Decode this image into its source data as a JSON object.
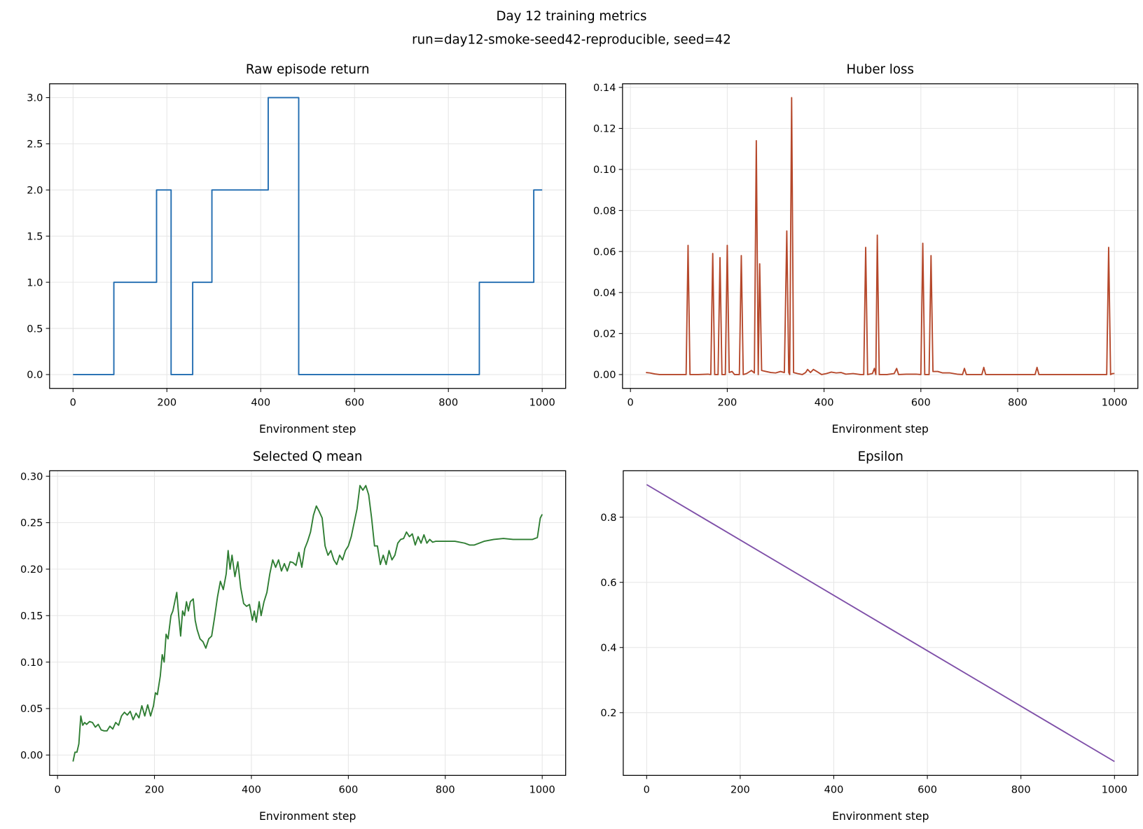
{
  "title": "Day 12 training metrics",
  "subtitle": "run=day12-smoke-seed42-reproducible, seed=42",
  "chart_data": [
    {
      "type": "line",
      "drawstyle": "steps-post",
      "title": "Raw episode return",
      "x_label": "Environment step",
      "color": "#1f6bb0",
      "grid": true,
      "x": [
        0,
        87,
        178,
        209,
        255,
        296,
        416,
        481,
        866,
        982,
        1000
      ],
      "values": [
        0,
        1,
        2,
        0,
        1,
        2,
        3,
        0,
        1,
        2,
        2
      ],
      "xlim": [
        -50,
        1050
      ],
      "ylim": [
        -0.15,
        3.15
      ],
      "xticks": [
        0,
        200,
        400,
        600,
        800,
        1000
      ],
      "yticks": [
        {
          "value": 0,
          "label": "0.0"
        },
        {
          "value": 0.5,
          "label": "0.5"
        },
        {
          "value": 1,
          "label": "1.0"
        },
        {
          "value": 1.5,
          "label": "1.5"
        },
        {
          "value": 2,
          "label": "2.0"
        },
        {
          "value": 2.5,
          "label": "2.5"
        },
        {
          "value": 3,
          "label": "3.0"
        }
      ]
    },
    {
      "type": "line",
      "title": "Huber loss",
      "x_label": "Environment step",
      "color": "#b5472a",
      "grid": true,
      "x": [
        32,
        40,
        50,
        60,
        80,
        100,
        115,
        119,
        123,
        140,
        160,
        166,
        170,
        174,
        181,
        185,
        189,
        196,
        200,
        204,
        210,
        215,
        225,
        229,
        233,
        240,
        250,
        256,
        260,
        264,
        267,
        271,
        280,
        290,
        300,
        310,
        318,
        323,
        327,
        329,
        333,
        337,
        345,
        355,
        362,
        366,
        372,
        378,
        385,
        395,
        405,
        415,
        425,
        435,
        445,
        460,
        475,
        482,
        486,
        490,
        500,
        504,
        507,
        510,
        514,
        530,
        545,
        550,
        554,
        570,
        590,
        600,
        604,
        608,
        617,
        621,
        625,
        635,
        645,
        660,
        675,
        686,
        690,
        694,
        710,
        726,
        730,
        734,
        760,
        800,
        836,
        840,
        844,
        900,
        960,
        984,
        988,
        992,
        996,
        1000
      ],
      "values": [
        0.001,
        0.0008,
        0.0003,
        0,
        0,
        0,
        0,
        0.063,
        0,
        0,
        0.0002,
        0,
        0.059,
        0,
        0,
        0.057,
        0,
        0,
        0.063,
        0.001,
        0.0015,
        0,
        0,
        0.058,
        0,
        0.0005,
        0.002,
        0.0008,
        0.114,
        0,
        0.054,
        0.002,
        0.0015,
        0.001,
        0.0008,
        0.0015,
        0.001,
        0.07,
        0.001,
        0,
        0.135,
        0.001,
        0.0005,
        0,
        0.001,
        0.0025,
        0.001,
        0.0025,
        0.0015,
        0,
        0.0005,
        0.0012,
        0.0008,
        0.001,
        0.0002,
        0.0005,
        0,
        0,
        0.062,
        0,
        0.0005,
        0.003,
        0,
        0.068,
        0,
        0,
        0.0005,
        0.003,
        0,
        0.0002,
        0.0002,
        0,
        0.064,
        0,
        0,
        0.058,
        0.0015,
        0.0015,
        0.0008,
        0.0008,
        0.0002,
        0,
        0.003,
        0,
        0,
        0,
        0.0035,
        0,
        0,
        0,
        0,
        0.0035,
        0,
        0,
        0,
        0,
        0.062,
        0,
        0.0005,
        0.0005
      ],
      "xlim": [
        -16.4,
        1048.4
      ],
      "ylim": [
        -0.00675,
        0.14175
      ],
      "xticks": [
        0,
        200,
        400,
        600,
        800,
        1000
      ],
      "yticks": [
        {
          "value": 0,
          "label": "0.00"
        },
        {
          "value": 0.02,
          "label": "0.02"
        },
        {
          "value": 0.04,
          "label": "0.04"
        },
        {
          "value": 0.06,
          "label": "0.06"
        },
        {
          "value": 0.08,
          "label": "0.08"
        },
        {
          "value": 0.1,
          "label": "0.10"
        },
        {
          "value": 0.12,
          "label": "0.12"
        },
        {
          "value": 0.14,
          "label": "0.14"
        }
      ]
    },
    {
      "type": "line",
      "title": "Selected Q mean",
      "x_label": "Environment step",
      "color": "#2e7d32",
      "grid": true,
      "x": [
        32,
        36,
        40,
        44,
        48,
        52,
        56,
        60,
        66,
        72,
        78,
        84,
        90,
        96,
        102,
        108,
        114,
        120,
        126,
        132,
        138,
        144,
        150,
        156,
        162,
        168,
        174,
        180,
        186,
        192,
        198,
        202,
        206,
        212,
        216,
        220,
        224,
        228,
        234,
        238,
        242,
        246,
        250,
        254,
        258,
        262,
        266,
        270,
        274,
        280,
        284,
        288,
        294,
        300,
        306,
        312,
        318,
        324,
        330,
        336,
        342,
        348,
        352,
        356,
        360,
        366,
        372,
        378,
        384,
        390,
        396,
        402,
        406,
        410,
        416,
        420,
        426,
        432,
        438,
        444,
        450,
        456,
        462,
        468,
        474,
        480,
        486,
        492,
        498,
        504,
        510,
        516,
        522,
        528,
        534,
        540,
        546,
        552,
        558,
        564,
        570,
        576,
        582,
        588,
        594,
        600,
        606,
        612,
        618,
        624,
        630,
        636,
        642,
        648,
        654,
        660,
        666,
        672,
        678,
        684,
        690,
        696,
        702,
        708,
        714,
        720,
        726,
        732,
        738,
        744,
        750,
        756,
        762,
        768,
        774,
        780,
        800,
        820,
        840,
        850,
        860,
        880,
        900,
        920,
        940,
        960,
        980,
        990,
        996,
        1000
      ],
      "values": [
        -0.007,
        0.003,
        0.003,
        0.012,
        0.042,
        0.032,
        0.035,
        0.033,
        0.036,
        0.035,
        0.03,
        0.033,
        0.027,
        0.026,
        0.026,
        0.031,
        0.028,
        0.035,
        0.032,
        0.042,
        0.046,
        0.043,
        0.047,
        0.038,
        0.045,
        0.04,
        0.053,
        0.042,
        0.054,
        0.042,
        0.053,
        0.067,
        0.065,
        0.085,
        0.108,
        0.1,
        0.13,
        0.125,
        0.15,
        0.155,
        0.165,
        0.175,
        0.15,
        0.128,
        0.155,
        0.15,
        0.165,
        0.155,
        0.165,
        0.168,
        0.145,
        0.135,
        0.125,
        0.122,
        0.115,
        0.125,
        0.128,
        0.148,
        0.17,
        0.187,
        0.178,
        0.195,
        0.22,
        0.2,
        0.215,
        0.192,
        0.208,
        0.18,
        0.163,
        0.16,
        0.162,
        0.145,
        0.155,
        0.143,
        0.165,
        0.15,
        0.165,
        0.175,
        0.195,
        0.21,
        0.202,
        0.21,
        0.198,
        0.206,
        0.198,
        0.208,
        0.207,
        0.204,
        0.218,
        0.202,
        0.222,
        0.23,
        0.24,
        0.258,
        0.268,
        0.262,
        0.255,
        0.225,
        0.215,
        0.22,
        0.21,
        0.205,
        0.215,
        0.21,
        0.22,
        0.225,
        0.235,
        0.25,
        0.265,
        0.29,
        0.285,
        0.29,
        0.28,
        0.255,
        0.225,
        0.225,
        0.205,
        0.215,
        0.205,
        0.22,
        0.21,
        0.215,
        0.228,
        0.232,
        0.233,
        0.24,
        0.235,
        0.238,
        0.226,
        0.235,
        0.228,
        0.237,
        0.228,
        0.232,
        0.229,
        0.23,
        0.23,
        0.23,
        0.228,
        0.226,
        0.226,
        0.23,
        0.232,
        0.233,
        0.232,
        0.232,
        0.232,
        0.234,
        0.255,
        0.259
      ],
      "xlim": [
        -16.4,
        1048.4
      ],
      "ylim": [
        -0.0219,
        0.3059
      ],
      "xticks": [
        0,
        200,
        400,
        600,
        800,
        1000
      ],
      "yticks": [
        {
          "value": 0,
          "label": "0.00"
        },
        {
          "value": 0.05,
          "label": "0.05"
        },
        {
          "value": 0.1,
          "label": "0.10"
        },
        {
          "value": 0.15,
          "label": "0.15"
        },
        {
          "value": 0.2,
          "label": "0.20"
        },
        {
          "value": 0.25,
          "label": "0.25"
        },
        {
          "value": 0.3,
          "label": "0.30"
        }
      ]
    },
    {
      "type": "line",
      "title": "Epsilon",
      "x_label": "Environment step",
      "color": "#7e4fa8",
      "grid": true,
      "x": [
        0,
        1000
      ],
      "values": [
        0.9,
        0.05
      ],
      "xlim": [
        -50,
        1050
      ],
      "ylim": [
        0.0075,
        0.9425
      ],
      "xticks": [
        0,
        200,
        400,
        600,
        800,
        1000
      ],
      "yticks": [
        0.2,
        0.4,
        0.6,
        0.8
      ]
    }
  ]
}
